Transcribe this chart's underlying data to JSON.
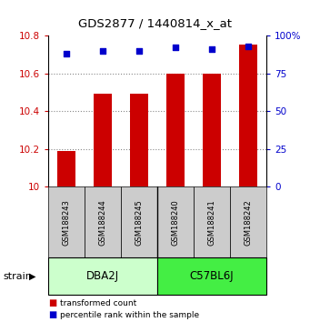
{
  "title": "GDS2877 / 1440814_x_at",
  "samples": [
    "GSM188243",
    "GSM188244",
    "GSM188245",
    "GSM188240",
    "GSM188241",
    "GSM188242"
  ],
  "transformed_count": [
    10.19,
    10.49,
    10.49,
    10.6,
    10.6,
    10.75
  ],
  "percentile_rank": [
    88,
    90,
    90,
    92,
    91,
    93
  ],
  "groups": [
    {
      "label": "DBA2J",
      "color_light": "#ccffcc",
      "color_dark": "#44ee44"
    },
    {
      "label": "C57BL6J",
      "color_light": "#44ee44",
      "color_dark": "#44ee44"
    }
  ],
  "ylim_left": [
    10.0,
    10.8
  ],
  "ylim_right": [
    0,
    100
  ],
  "yticks_left": [
    10.0,
    10.2,
    10.4,
    10.6,
    10.8
  ],
  "yticks_right": [
    0,
    25,
    50,
    75,
    100
  ],
  "ytick_labels_left": [
    "10",
    "10.2",
    "10.4",
    "10.6",
    "10.8"
  ],
  "ytick_labels_right": [
    "0",
    "25",
    "50",
    "75",
    "100%"
  ],
  "bar_color": "#cc0000",
  "dot_color": "#0000cc",
  "bar_width": 0.5,
  "grid_color": "#888888",
  "axis_label_color_left": "#cc0000",
  "axis_label_color_right": "#0000cc",
  "label_transformed": "transformed count",
  "label_percentile": "percentile rank within the sample",
  "strain_label": "strain",
  "sample_box_color": "#cccccc",
  "group1_color": "#ccffcc",
  "group2_color": "#44ee44"
}
